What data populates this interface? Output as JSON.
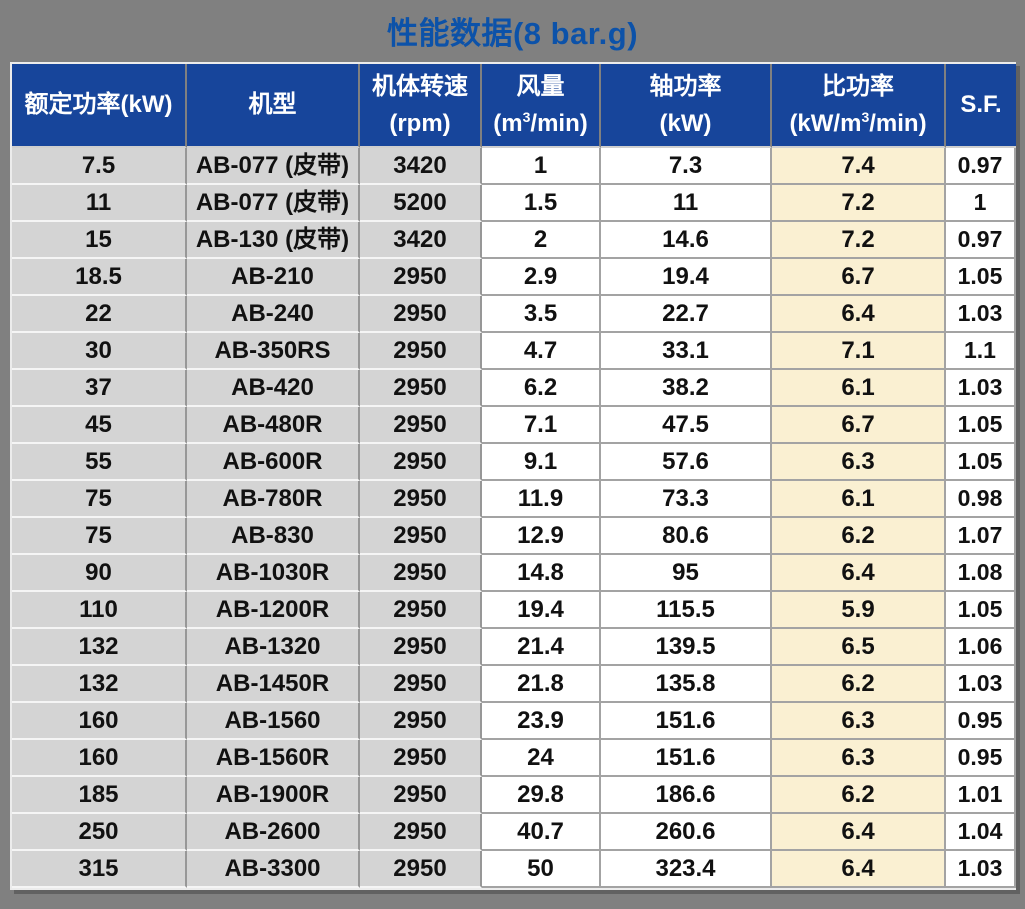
{
  "title": "性能数据(8 bar.g)",
  "colors": {
    "page_bg": "#808080",
    "header_bg": "#17459B",
    "header_text": "#FFFFFF",
    "title_text": "#0C52A9",
    "grey_cell": "#D4D4D4",
    "cream_cell": "#FAF0D2",
    "white_cell": "#FFFFFF",
    "gridline": "#A3A3A3"
  },
  "table": {
    "columns": [
      {
        "label": "额定功率(kW)",
        "unit": ""
      },
      {
        "label": "机型",
        "unit": ""
      },
      {
        "label": "机体转速",
        "unit": "(rpm)"
      },
      {
        "label": "风量",
        "unit_pre": "(m",
        "unit_sup": "3",
        "unit_post": "/min)"
      },
      {
        "label": "轴功率",
        "unit": "(kW)"
      },
      {
        "label": "比功率",
        "unit_pre": "(kW/m",
        "unit_sup": "3",
        "unit_post": "/min)"
      },
      {
        "label": "S.F.",
        "unit": ""
      }
    ],
    "rows": [
      [
        "7.5",
        "AB-077 (皮带)",
        "3420",
        "1",
        "7.3",
        "7.4",
        "0.97"
      ],
      [
        "11",
        "AB-077 (皮带)",
        "5200",
        "1.5",
        "11",
        "7.2",
        "1"
      ],
      [
        "15",
        "AB-130 (皮带)",
        "3420",
        "2",
        "14.6",
        "7.2",
        "0.97"
      ],
      [
        "18.5",
        "AB-210",
        "2950",
        "2.9",
        "19.4",
        "6.7",
        "1.05"
      ],
      [
        "22",
        "AB-240",
        "2950",
        "3.5",
        "22.7",
        "6.4",
        "1.03"
      ],
      [
        "30",
        "AB-350RS",
        "2950",
        "4.7",
        "33.1",
        "7.1",
        "1.1"
      ],
      [
        "37",
        "AB-420",
        "2950",
        "6.2",
        "38.2",
        "6.1",
        "1.03"
      ],
      [
        "45",
        "AB-480R",
        "2950",
        "7.1",
        "47.5",
        "6.7",
        "1.05"
      ],
      [
        "55",
        "AB-600R",
        "2950",
        "9.1",
        "57.6",
        "6.3",
        "1.05"
      ],
      [
        "75",
        "AB-780R",
        "2950",
        "11.9",
        "73.3",
        "6.1",
        "0.98"
      ],
      [
        "75",
        "AB-830",
        "2950",
        "12.9",
        "80.6",
        "6.2",
        "1.07"
      ],
      [
        "90",
        "AB-1030R",
        "2950",
        "14.8",
        "95",
        "6.4",
        "1.08"
      ],
      [
        "110",
        "AB-1200R",
        "2950",
        "19.4",
        "115.5",
        "5.9",
        "1.05"
      ],
      [
        "132",
        "AB-1320",
        "2950",
        "21.4",
        "139.5",
        "6.5",
        "1.06"
      ],
      [
        "132",
        "AB-1450R",
        "2950",
        "21.8",
        "135.8",
        "6.2",
        "1.03"
      ],
      [
        "160",
        "AB-1560",
        "2950",
        "23.9",
        "151.6",
        "6.3",
        "0.95"
      ],
      [
        "160",
        "AB-1560R",
        "2950",
        "24",
        "151.6",
        "6.3",
        "0.95"
      ],
      [
        "185",
        "AB-1900R",
        "2950",
        "29.8",
        "186.6",
        "6.2",
        "1.01"
      ],
      [
        "250",
        "AB-2600",
        "2950",
        "40.7",
        "260.6",
        "6.4",
        "1.04"
      ],
      [
        "315",
        "AB-3300",
        "2950",
        "50",
        "323.4",
        "6.4",
        "1.03"
      ]
    ]
  }
}
